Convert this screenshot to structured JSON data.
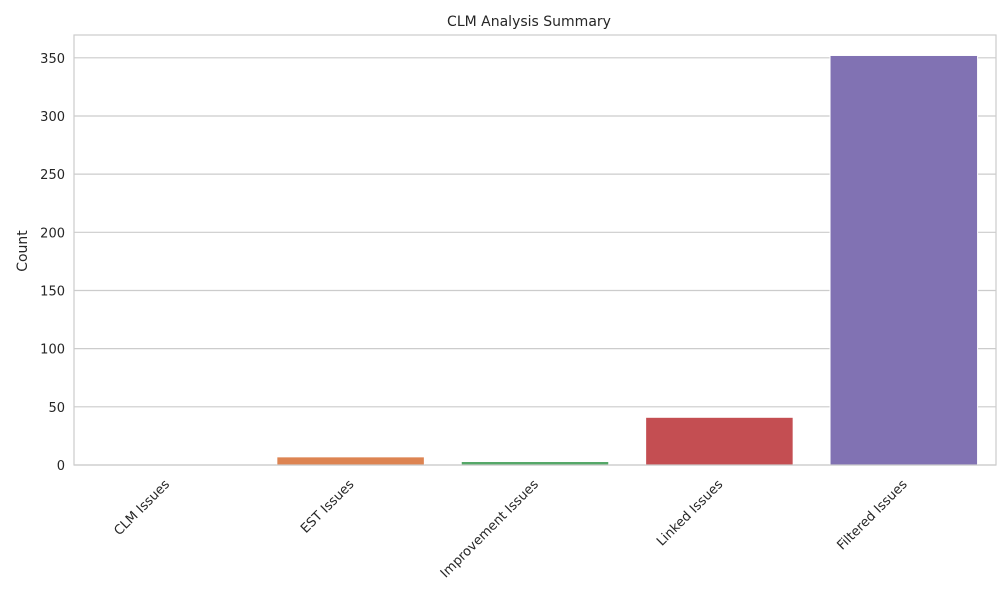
{
  "chart_data": {
    "type": "bar",
    "title": "CLM Analysis Summary",
    "xlabel": "",
    "ylabel": "Count",
    "categories": [
      "CLM Issues",
      "EST Issues",
      "Improvement Issues",
      "Linked Issues",
      "Filtered Issues"
    ],
    "values": [
      0,
      7,
      3,
      41,
      352
    ],
    "colors": [
      "#4c72b0",
      "#dd8452",
      "#55a868",
      "#c44e52",
      "#8172b3"
    ],
    "ylim": [
      0,
      369.6
    ],
    "yticks": [
      0,
      50,
      100,
      150,
      200,
      250,
      300,
      350
    ],
    "grid": true,
    "legend": "none"
  }
}
